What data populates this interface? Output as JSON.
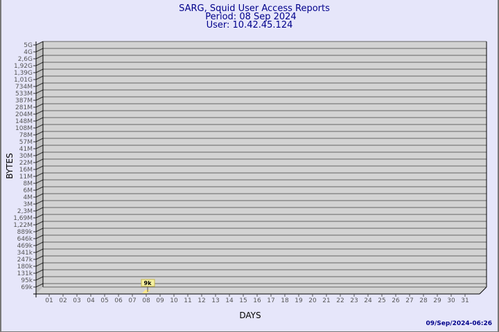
{
  "chart_data": {
    "type": "bar",
    "title": "SARG, Squid User Access Reports",
    "subtitle_lines": [
      "Period: 08 Sep 2024",
      "User: 10.42.45.124"
    ],
    "xlabel": "DAYS",
    "ylabel": "BYTES",
    "y_scale": "log",
    "y_ticks": [
      "69k",
      "95k",
      "131k",
      "180k",
      "247k",
      "341k",
      "469k",
      "646k",
      "889k",
      "1,22M",
      "1,69M",
      "2,3M",
      "3M",
      "4M",
      "6M",
      "8M",
      "11M",
      "16M",
      "22M",
      "30M",
      "41M",
      "57M",
      "78M",
      "108M",
      "148M",
      "204M",
      "281M",
      "387M",
      "533M",
      "734M",
      "1,01G",
      "1,39G",
      "1,92G",
      "2,6G",
      "4G",
      "5G"
    ],
    "categories": [
      "01",
      "02",
      "03",
      "04",
      "05",
      "06",
      "07",
      "08",
      "09",
      "10",
      "11",
      "12",
      "13",
      "14",
      "15",
      "16",
      "17",
      "18",
      "19",
      "20",
      "21",
      "22",
      "23",
      "24",
      "25",
      "26",
      "27",
      "28",
      "29",
      "30",
      "31"
    ],
    "bars": [
      {
        "day": "08",
        "value_label": "9k"
      }
    ],
    "grid": true,
    "colors": {
      "wall": "#d3d3d3",
      "side": "#c0c0c0",
      "bar": "#ffe88a",
      "title": "#00008b",
      "background": "#e6e6fa"
    }
  },
  "footer": {
    "timestamp": "09/Sep/2024-06:26"
  }
}
